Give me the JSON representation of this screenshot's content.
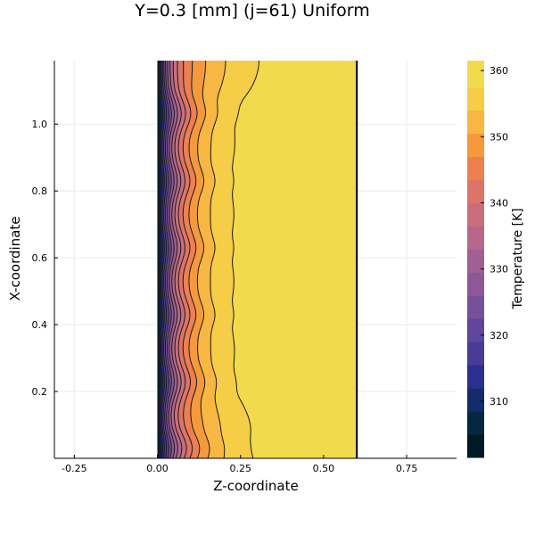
{
  "chart_data": {
    "type": "contour",
    "title": "Y=0.3 [mm] (j=61) Uniform",
    "xlabel": "Z-coordinate",
    "ylabel": "X-coordinate",
    "colorbar_label": "Temperature [K]",
    "xlim": [
      -0.31,
      0.9
    ],
    "ylim": [
      0.0,
      1.19
    ],
    "xticks": [
      -0.25,
      0.0,
      0.25,
      0.5,
      0.75
    ],
    "xtick_labels": [
      "-0.25",
      "0.00",
      "0.25",
      "0.50",
      "0.75"
    ],
    "yticks": [
      0.2,
      0.4,
      0.6,
      0.8,
      1.0
    ],
    "ytick_labels": [
      "0.2",
      "0.4",
      "0.6",
      "0.8",
      "1.0"
    ],
    "colorbar_range": [
      301.5,
      361.5
    ],
    "colorbar_ticks": [
      310,
      320,
      330,
      340,
      350,
      360
    ],
    "colorbar_tick_labels": [
      "310",
      "320",
      "330",
      "340",
      "350",
      "360"
    ],
    "levels": [
      301.5,
      305.0,
      308.5,
      312.0,
      315.5,
      319.0,
      322.5,
      326.0,
      329.5,
      333.0,
      336.5,
      340.0,
      343.5,
      347.0,
      350.5,
      354.0,
      357.5,
      361.5
    ],
    "level_colors": [
      "#001a23",
      "#05283f",
      "#152b6a",
      "#2d2f8f",
      "#483c96",
      "#5f469a",
      "#77509a",
      "#8c5898",
      "#a25f94",
      "#b6678b",
      "#ca6e7e",
      "#dc7568",
      "#ec8050",
      "#f59a3c",
      "#f8b743",
      "#f6cd47",
      "#f1db4d",
      "#e7f758"
    ],
    "domain_z": [
      0.0,
      0.6
    ],
    "domain_x": [
      0.0,
      1.19
    ],
    "periodic_features_x": [
      0.03,
      0.23,
      0.43,
      0.63,
      0.83,
      1.03
    ],
    "colors": {
      "grid": "#ebebeb",
      "line": "#1a1a1a"
    }
  }
}
